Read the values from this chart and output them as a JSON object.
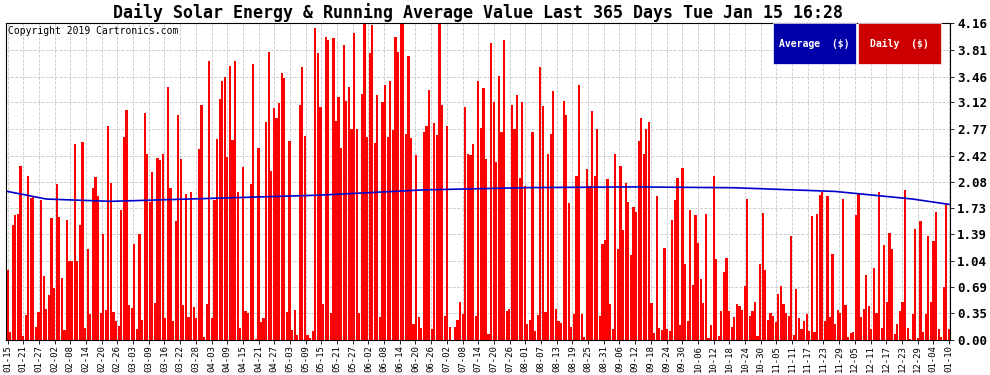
{
  "title": "Daily Solar Energy & Running Average Value Last 365 Days Tue Jan 15 16:28",
  "copyright": "Copyright 2019 Cartronics.com",
  "legend_avg": "Average  ($)",
  "legend_daily": "Daily  ($)",
  "ylim": [
    0.0,
    4.16
  ],
  "yticks": [
    0.0,
    0.35,
    0.69,
    1.04,
    1.39,
    1.73,
    2.08,
    2.42,
    2.77,
    3.12,
    3.46,
    3.81,
    4.16
  ],
  "bar_color": "#ff0000",
  "avg_color": "#0000cc",
  "bg_color": "#ffffff",
  "grid_color": "#bbbbbb",
  "title_fontsize": 12,
  "copyright_fontsize": 7,
  "x_labels": [
    "01-15",
    "01-21",
    "01-27",
    "02-02",
    "02-08",
    "02-14",
    "02-20",
    "02-26",
    "03-03",
    "03-09",
    "03-16",
    "03-22",
    "03-28",
    "04-03",
    "04-09",
    "04-15",
    "04-21",
    "04-27",
    "05-03",
    "05-09",
    "05-15",
    "05-21",
    "05-27",
    "06-02",
    "06-08",
    "06-14",
    "06-20",
    "06-26",
    "07-02",
    "07-08",
    "07-14",
    "07-20",
    "07-26",
    "08-01",
    "08-07",
    "08-13",
    "08-19",
    "08-25",
    "08-31",
    "09-06",
    "09-12",
    "09-18",
    "09-24",
    "09-30",
    "10-06",
    "10-12",
    "10-18",
    "10-24",
    "10-30",
    "11-05",
    "11-11",
    "11-17",
    "11-23",
    "11-29",
    "12-05",
    "12-11",
    "12-17",
    "12-23",
    "12-29",
    "01-04",
    "01-10"
  ],
  "avg_control_x": [
    0,
    15,
    40,
    80,
    120,
    160,
    200,
    240,
    280,
    320,
    350,
    364
  ],
  "avg_control_y": [
    1.95,
    1.85,
    1.82,
    1.86,
    1.9,
    1.97,
    2.0,
    2.01,
    2.0,
    1.95,
    1.85,
    1.78
  ],
  "legend_avg_bg": "#0000aa",
  "legend_daily_bg": "#cc0000"
}
